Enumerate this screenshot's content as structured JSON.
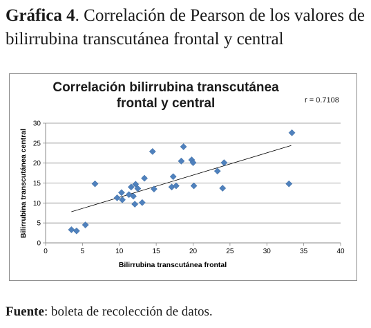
{
  "caption": {
    "label": "Gráfica 4",
    "text": ". Correlación de Pearson de los valores de bilirrubina transcutánea frontal y central"
  },
  "source": {
    "label": "Fuente",
    "text": ": boleta de recolección de datos."
  },
  "chart_data": {
    "type": "scatter",
    "title_line1": "Correlación bilirrubina transcutánea",
    "title_line2": "frontal y central",
    "annotation": "r = 0.7108",
    "xlabel": "Bilirrubina  transcutánea frontal",
    "ylabel": "Bilirrubina  transcutánea central",
    "xlim": [
      0,
      40
    ],
    "ylim": [
      0,
      30
    ],
    "x_ticks": [
      "0",
      "5",
      "10",
      "15",
      "20",
      "25",
      "30",
      "35",
      "40"
    ],
    "y_ticks": [
      "0",
      "5",
      "10",
      "15",
      "20",
      "25",
      "30"
    ],
    "grid": "horizontal",
    "marker": "diamond",
    "marker_color": "#4f81bd",
    "trendline": {
      "x": [
        3.5,
        33.3
      ],
      "y": [
        7.8,
        24.4
      ]
    },
    "points": [
      {
        "x": 3.5,
        "y": 3.3
      },
      {
        "x": 4.2,
        "y": 3.0
      },
      {
        "x": 5.4,
        "y": 4.5
      },
      {
        "x": 6.7,
        "y": 14.8
      },
      {
        "x": 9.7,
        "y": 11.3
      },
      {
        "x": 10.3,
        "y": 12.6
      },
      {
        "x": 10.4,
        "y": 10.8
      },
      {
        "x": 11.3,
        "y": 12.1
      },
      {
        "x": 11.6,
        "y": 14.0
      },
      {
        "x": 11.9,
        "y": 11.7
      },
      {
        "x": 12.1,
        "y": 9.7
      },
      {
        "x": 12.2,
        "y": 14.7
      },
      {
        "x": 12.5,
        "y": 13.6
      },
      {
        "x": 13.1,
        "y": 10.1
      },
      {
        "x": 13.4,
        "y": 16.2
      },
      {
        "x": 14.5,
        "y": 22.9
      },
      {
        "x": 14.7,
        "y": 13.5
      },
      {
        "x": 17.1,
        "y": 14.0
      },
      {
        "x": 17.3,
        "y": 16.6
      },
      {
        "x": 17.7,
        "y": 14.3
      },
      {
        "x": 18.4,
        "y": 20.5
      },
      {
        "x": 18.7,
        "y": 24.1
      },
      {
        "x": 19.8,
        "y": 20.8
      },
      {
        "x": 20.0,
        "y": 20.1
      },
      {
        "x": 20.1,
        "y": 14.3
      },
      {
        "x": 23.3,
        "y": 18.0
      },
      {
        "x": 24.0,
        "y": 13.7
      },
      {
        "x": 24.2,
        "y": 20.1
      },
      {
        "x": 33.0,
        "y": 14.8
      },
      {
        "x": 33.4,
        "y": 27.6
      }
    ]
  }
}
